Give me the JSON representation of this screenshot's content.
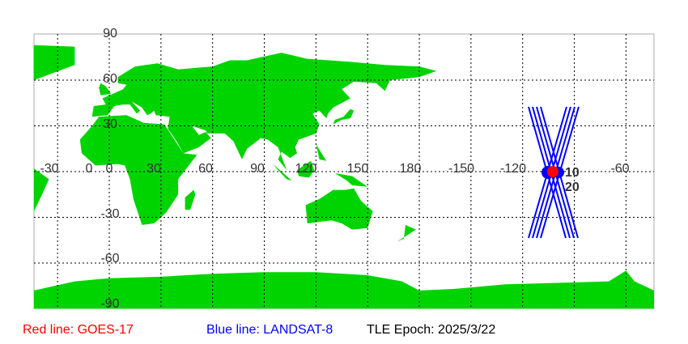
{
  "map": {
    "projection": "equirectangular",
    "center_longitude": 136,
    "land_color": "#00d400",
    "ocean_color": "#ffffff",
    "grid": "dotted",
    "lon_labels": [
      "-30",
      "0",
      "30",
      "60",
      "90",
      "120",
      "150",
      "180",
      "-150",
      "-120",
      "-60"
    ],
    "lat_labels": [
      "90",
      "60",
      "30",
      "0",
      "-30",
      "-60",
      "-90"
    ],
    "track_labels": [
      "10",
      "20"
    ]
  },
  "satellites": [
    {
      "name": "GOES-17",
      "color": "#ff0000"
    },
    {
      "name": "LANDSAT-8",
      "color": "#0000ff"
    }
  ],
  "legend": {
    "red": "Red line: GOES-17",
    "blue": "Blue line: LANDSAT-8",
    "epoch": "TLE Epoch: 2025/3/22"
  }
}
